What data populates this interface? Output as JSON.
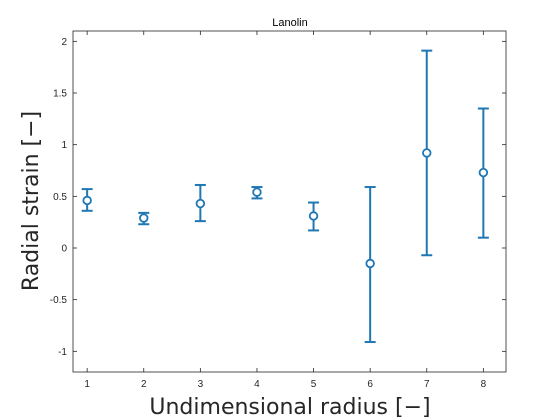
{
  "chart_data": {
    "type": "scatter",
    "title": "Lanolin",
    "xlabel": "Undimensional radius [−]",
    "ylabel": "Radial strain [−]",
    "xlim": [
      0.75,
      8.4
    ],
    "ylim": [
      -1.2,
      2.1
    ],
    "x_ticks": [
      1,
      2,
      3,
      4,
      5,
      6,
      7,
      8
    ],
    "x_tick_labels": [
      "1",
      "2",
      "3",
      "4",
      "5",
      "6",
      "7",
      "8"
    ],
    "y_ticks": [
      -1,
      -0.5,
      0,
      0.5,
      1,
      1.5,
      2
    ],
    "y_tick_labels": [
      "-1",
      "-0.5",
      "0",
      "0.5",
      "1",
      "1.5",
      "2"
    ],
    "grid": false,
    "marker": "circle",
    "color": "#1f77b4",
    "points": [
      {
        "x": 1,
        "y": 0.46,
        "low": 0.36,
        "high": 0.57
      },
      {
        "x": 2,
        "y": 0.29,
        "low": 0.23,
        "high": 0.34
      },
      {
        "x": 3,
        "y": 0.43,
        "low": 0.26,
        "high": 0.61
      },
      {
        "x": 4,
        "y": 0.54,
        "low": 0.48,
        "high": 0.59
      },
      {
        "x": 5,
        "y": 0.31,
        "low": 0.17,
        "high": 0.44
      },
      {
        "x": 6,
        "y": -0.15,
        "low": -0.91,
        "high": 0.59
      },
      {
        "x": 7,
        "y": 0.92,
        "low": -0.07,
        "high": 1.91
      },
      {
        "x": 8,
        "y": 0.73,
        "low": 0.1,
        "high": 1.35
      }
    ]
  }
}
